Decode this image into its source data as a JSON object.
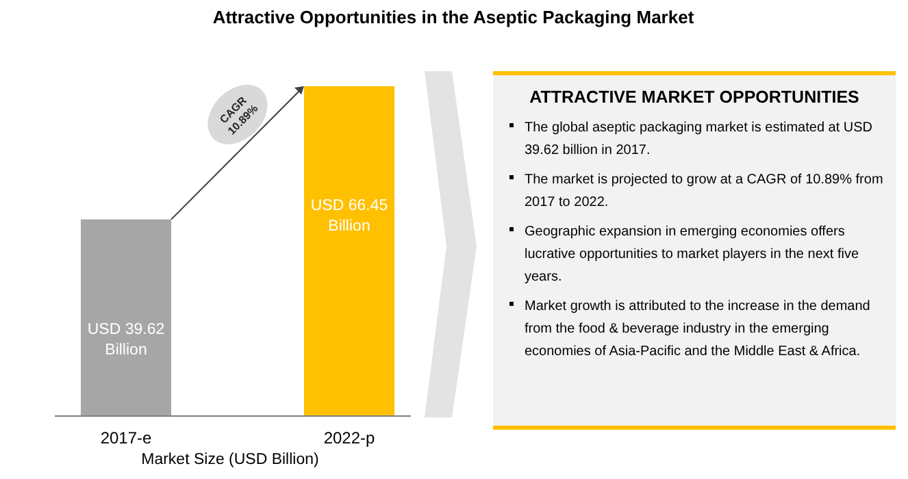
{
  "chart_data": [
    {
      "type": "bar",
      "title": "Attractive Opportunities in the Aseptic Packaging Market",
      "categories": [
        "2017-e",
        "2022-p"
      ],
      "values": [
        39.62,
        66.45
      ],
      "colors": [
        "#a6a6a6",
        "#ffc000"
      ],
      "value_labels": [
        "USD 39.62 Billion",
        "USD 66.45 Billion"
      ],
      "xlabel": "Market Size (USD Billion)",
      "annotations": [
        "CAGR 10.89%"
      ]
    },
    {
      "type": "other",
      "title": "ATTRACTIVE MARKET OPPORTUNITIES",
      "annotations": [
        "The global aseptic packaging market is estimated at USD 39.62 billion in 2017.",
        "The market is projected to grow at a CAGR of 10.89% from 2017 to 2022.",
        "Geographic expansion in emerging economies offers lucrative opportunities to market players in the next five years.",
        "Market growth is attributed to the increase in the demand from the food & beverage industry in the emerging economies of Asia-Pacific and the Middle East & Africa."
      ]
    }
  ]
}
